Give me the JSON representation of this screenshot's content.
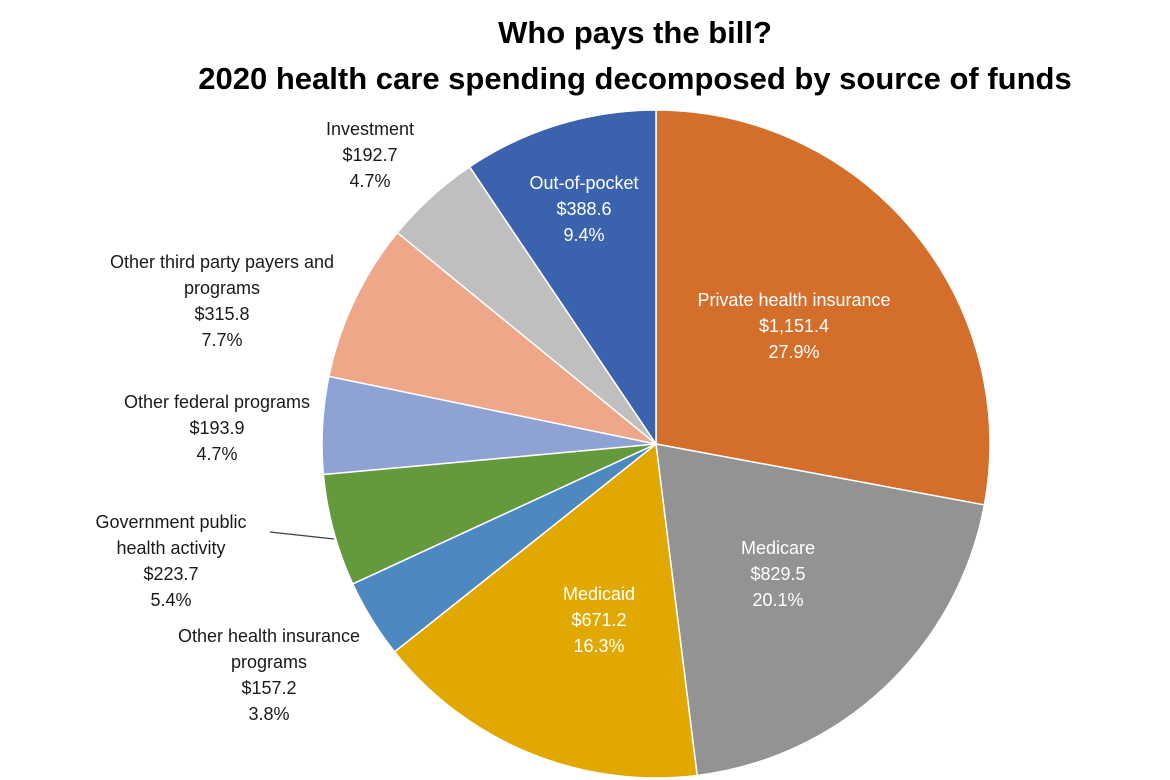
{
  "chart_data": {
    "type": "pie",
    "title": [
      "Who pays the bill?",
      "2020 health care spending decomposed by source of funds"
    ],
    "slices": [
      {
        "name": "Private health insurance",
        "value": "$1,151.4",
        "amount": 1151.4,
        "percent": "27.9%",
        "color": "#d46e2b",
        "label_color": "#ffffff",
        "lines": [
          "Private health insurance"
        ]
      },
      {
        "name": "Medicare",
        "value": "$829.5",
        "amount": 829.5,
        "percent": "20.1%",
        "color": "#939393",
        "label_color": "#ffffff",
        "lines": [
          "Medicare"
        ]
      },
      {
        "name": "Medicaid",
        "value": "$671.2",
        "amount": 671.2,
        "percent": "16.3%",
        "color": "#e1a800",
        "label_color": "#ffffff",
        "lines": [
          "Medicaid"
        ]
      },
      {
        "name": "Other health insurance programs",
        "value": "$157.2",
        "amount": 157.2,
        "percent": "3.8%",
        "color": "#4e88c1",
        "label_color": "#1a1a1a",
        "lines": [
          "Other health insurance",
          "programs"
        ]
      },
      {
        "name": "Government public health activity",
        "value": "$223.7",
        "amount": 223.7,
        "percent": "5.4%",
        "color": "#649a3c",
        "label_color": "#1a1a1a",
        "lines": [
          "Government public",
          "health activity"
        ]
      },
      {
        "name": "Other federal programs",
        "value": "$193.9",
        "amount": 193.9,
        "percent": "4.7%",
        "color": "#8fa2d4",
        "label_color": "#1a1a1a",
        "lines": [
          "Other federal programs"
        ]
      },
      {
        "name": "Other third party payers and programs",
        "value": "$315.8",
        "amount": 315.8,
        "percent": "7.7%",
        "color": "#efa789",
        "label_color": "#1a1a1a",
        "lines": [
          "Other third party payers and",
          "programs"
        ]
      },
      {
        "name": "Investment",
        "value": "$192.7",
        "amount": 192.7,
        "percent": "4.7%",
        "color": "#bfbfbf",
        "label_color": "#1a1a1a",
        "lines": [
          "Investment"
        ]
      },
      {
        "name": "Out-of-pocket",
        "value": "$388.6",
        "amount": 388.6,
        "percent": "9.4%",
        "color": "#3b63ad",
        "label_color": "#ffffff",
        "lines": [
          "Out-of-pocket"
        ]
      }
    ],
    "start": "12 o'clock",
    "direction": "clockwise",
    "legend": "none"
  }
}
